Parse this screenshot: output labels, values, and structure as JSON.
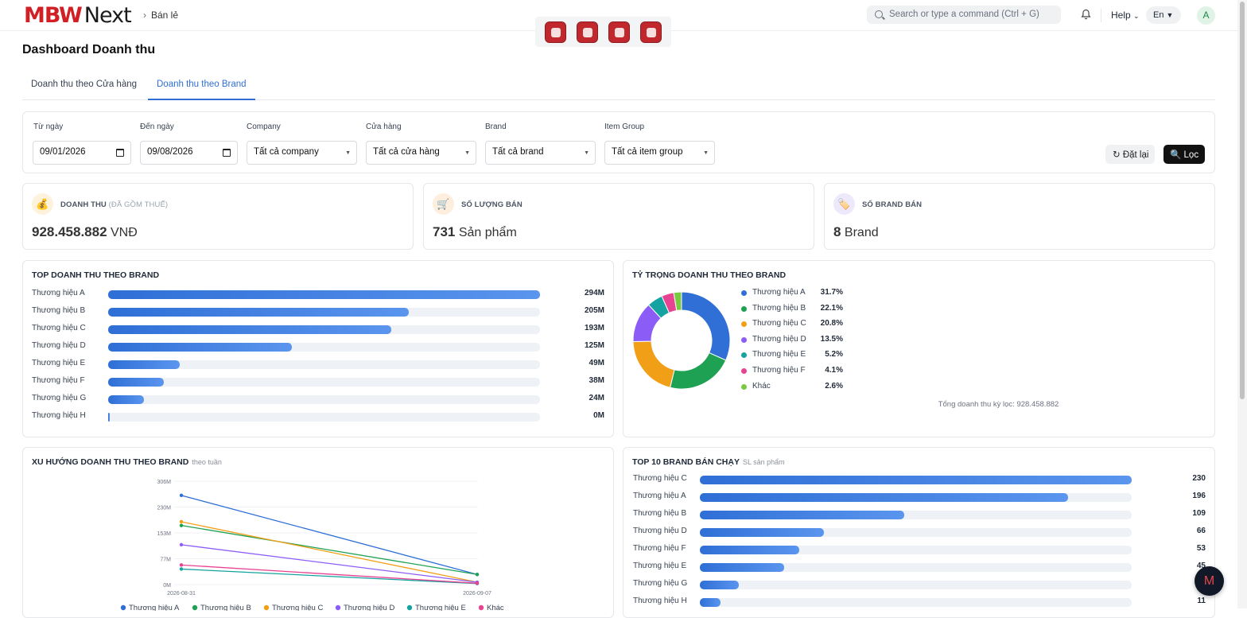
{
  "app": {
    "logo_mbw": "MBW",
    "logo_next": "Next",
    "breadcrumb": "Bán lẻ"
  },
  "header": {
    "search_placeholder": "Search or type a command (Ctrl + G)",
    "help_label": "Help",
    "lang_label": "En",
    "avatar_initial": "A",
    "app_icons": [
      "retail-app-icon",
      "pos-app-icon",
      "team-app-icon",
      "store-app-icon"
    ]
  },
  "page": {
    "title": "Dashboard Doanh thu"
  },
  "tabs": [
    {
      "label": "Doanh thu theo Cửa hàng",
      "active": false
    },
    {
      "label": "Doanh thu theo Brand",
      "active": true
    }
  ],
  "filters": {
    "from_label": "Từ ngày",
    "from_value": "09/01/2026",
    "to_label": "Đến ngày",
    "to_value": "09/08/2026",
    "company_label": "Company",
    "company_value": "Tất cả company",
    "store_label": "Cửa hàng",
    "store_value": "Tất cả cửa hàng",
    "brand_label": "Brand",
    "brand_value": "Tất cả brand",
    "item_group_label": "Item Group",
    "item_group_value": "Tất cả item group",
    "reset_label": "Đặt lại",
    "filter_label": "Lọc"
  },
  "kpis": {
    "revenue": {
      "label": "DOANH THU",
      "sublabel": "(ĐÃ GỒM THUẾ)",
      "value": "928.458.882",
      "unit": "VNĐ",
      "icon": "money-bag-icon"
    },
    "quantity": {
      "label": "SỐ LƯỢNG BÁN",
      "value": "731",
      "unit": "Sản phẩm",
      "icon": "cart-icon"
    },
    "brands": {
      "label": "SỐ BRAND BÁN",
      "value": "8",
      "unit": "Brand",
      "icon": "tag-icon"
    }
  },
  "top_revenue": {
    "title": "TOP DOANH THU THEO BRAND",
    "rows": [
      {
        "name": "Thương hiệu A",
        "label": "294M",
        "ratio": 1.0
      },
      {
        "name": "Thương hiệu B",
        "label": "205M",
        "ratio": 0.697
      },
      {
        "name": "Thương hiệu C",
        "label": "193M",
        "ratio": 0.656
      },
      {
        "name": "Thương hiệu D",
        "label": "125M",
        "ratio": 0.425
      },
      {
        "name": "Thương hiệu E",
        "label": "49M",
        "ratio": 0.165
      },
      {
        "name": "Thương hiệu F",
        "label": "38M",
        "ratio": 0.129
      },
      {
        "name": "Thương hiệu G",
        "label": "24M",
        "ratio": 0.082
      },
      {
        "name": "Thương hiệu H",
        "label": "0M",
        "ratio": 0.004
      }
    ]
  },
  "share": {
    "title": "TỶ TRỌNG DOANH THU THEO BRAND",
    "total_note": "Tổng doanh thu kỳ lọc: 928.458.882",
    "slices": [
      {
        "name": "Thương hiệu A",
        "pct_label": "31.7%",
        "value": 31.7,
        "color": "#2f6fd6"
      },
      {
        "name": "Thương hiệu B",
        "pct_label": "22.1%",
        "value": 22.1,
        "color": "#1fa153"
      },
      {
        "name": "Thương hiệu C",
        "pct_label": "20.8%",
        "value": 20.8,
        "color": "#f29f18"
      },
      {
        "name": "Thương hiệu D",
        "pct_label": "13.5%",
        "value": 13.5,
        "color": "#8b5cf6"
      },
      {
        "name": "Thương hiệu E",
        "pct_label": "5.2%",
        "value": 5.2,
        "color": "#14a3a0"
      },
      {
        "name": "Thương hiệu F",
        "pct_label": "4.1%",
        "value": 4.1,
        "color": "#e84393"
      },
      {
        "name": "Khác",
        "pct_label": "2.6%",
        "value": 2.6,
        "color": "#7ac943"
      }
    ]
  },
  "trend": {
    "title": "XU HƯỚNG DOANH THU THEO BRAND",
    "subtitle": "theo tuần",
    "y_ticks": [
      "306M",
      "230M",
      "153M",
      "77M",
      "0M"
    ],
    "x_ticks": [
      "2026-08-31",
      "2026-09-07"
    ]
  },
  "chart_data": {
    "type": "line",
    "x": [
      "2026-08-31",
      "2026-09-07"
    ],
    "ylim": [
      0,
      306
    ],
    "series": [
      {
        "name": "Thương hiệu A",
        "color": "#2f6fd6",
        "values": [
          264,
          30
        ]
      },
      {
        "name": "Thương hiệu B",
        "color": "#1fa153",
        "values": [
          175,
          30
        ]
      },
      {
        "name": "Thương hiệu C",
        "color": "#f29f18",
        "values": [
          186,
          7
        ]
      },
      {
        "name": "Thương hiệu D",
        "color": "#8b5cf6",
        "values": [
          118,
          7
        ]
      },
      {
        "name": "Thương hiệu E",
        "color": "#14a3a0",
        "values": [
          46,
          3
        ]
      },
      {
        "name": "Khác",
        "color": "#e84393",
        "values": [
          58,
          4
        ]
      }
    ]
  },
  "top_sold": {
    "title": "TOP 10 BRAND BÁN CHẠY",
    "subtitle": "SL sản phẩm",
    "rows": [
      {
        "name": "Thương hiệu C",
        "label": "230",
        "ratio": 1.0
      },
      {
        "name": "Thương hiệu A",
        "label": "196",
        "ratio": 0.852
      },
      {
        "name": "Thương hiệu B",
        "label": "109",
        "ratio": 0.474
      },
      {
        "name": "Thương hiệu D",
        "label": "66",
        "ratio": 0.287
      },
      {
        "name": "Thương hiệu F",
        "label": "53",
        "ratio": 0.23
      },
      {
        "name": "Thương hiệu E",
        "label": "45",
        "ratio": 0.196
      },
      {
        "name": "Thương hiệu G",
        "label": "",
        "ratio": 0.09
      },
      {
        "name": "Thương hiệu H",
        "label": "11",
        "ratio": 0.048
      }
    ]
  },
  "fab": {
    "label": "M"
  }
}
